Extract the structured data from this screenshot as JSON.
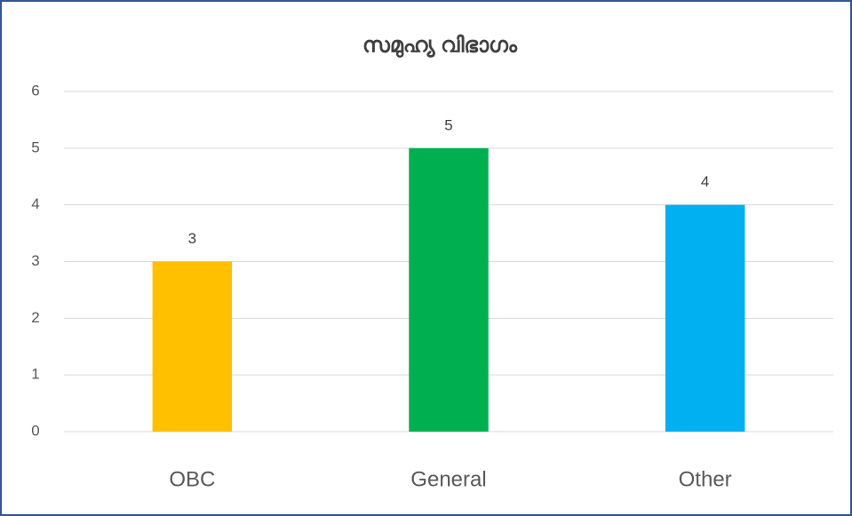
{
  "chart_data": {
    "type": "bar",
    "title": "സമുഹ്യ വിഭാഗം",
    "categories": [
      "OBC",
      "General",
      "Other"
    ],
    "values": [
      3,
      5,
      4
    ],
    "colors": [
      "#ffc000",
      "#00b050",
      "#00b0f0"
    ],
    "ylim": [
      0,
      6
    ],
    "yticks": [
      0,
      1,
      2,
      3,
      4,
      5,
      6
    ],
    "grid": true
  }
}
